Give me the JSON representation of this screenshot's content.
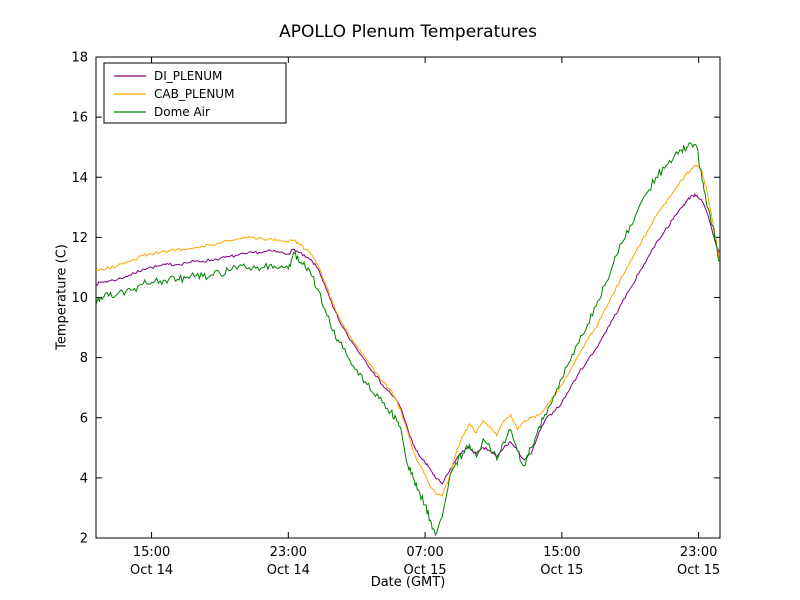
{
  "chart_data": {
    "type": "line",
    "title": "APOLLO Plenum Temperatures",
    "xlabel": "Date (GMT)",
    "ylabel": "Temperature (C)",
    "x_unit": "hours since Oct 14 00:00 GMT",
    "xlim": [
      11.75,
      48.25
    ],
    "ylim": [
      2,
      18
    ],
    "grid": false,
    "legend_position": "upper left",
    "yticks": [
      2,
      4,
      6,
      8,
      10,
      12,
      14,
      16,
      18
    ],
    "xticks": [
      {
        "x": 15,
        "line1": "15:00",
        "line2": "Oct 14"
      },
      {
        "x": 23,
        "line1": "23:00",
        "line2": "Oct 14"
      },
      {
        "x": 31,
        "line1": "07:00",
        "line2": "Oct 15"
      },
      {
        "x": 39,
        "line1": "15:00",
        "line2": "Oct 15"
      },
      {
        "x": 47,
        "line1": "23:00",
        "line2": "Oct 15"
      }
    ],
    "x": [
      11.75,
      12.0,
      12.5,
      13.0,
      13.5,
      14.0,
      14.5,
      15.0,
      15.5,
      16.0,
      16.5,
      17.0,
      17.5,
      18.0,
      18.5,
      19.0,
      19.5,
      20.0,
      20.5,
      21.0,
      21.5,
      22.0,
      22.5,
      23.0,
      23.3,
      23.6,
      24.0,
      24.4,
      24.8,
      25.2,
      25.6,
      26.0,
      26.5,
      27.0,
      27.5,
      28.0,
      28.5,
      29.0,
      29.3,
      29.6,
      30.0,
      30.3,
      30.6,
      31.0,
      31.3,
      31.6,
      32.0,
      32.4,
      32.8,
      33.2,
      33.6,
      34.0,
      34.4,
      34.8,
      35.2,
      35.6,
      36.0,
      36.4,
      36.8,
      37.2,
      37.6,
      38.0,
      38.5,
      39.0,
      39.5,
      40.0,
      40.5,
      41.0,
      41.5,
      42.0,
      42.5,
      43.0,
      43.5,
      44.0,
      44.5,
      45.0,
      45.5,
      46.0,
      46.3,
      46.6,
      46.9,
      47.2,
      47.5,
      47.8,
      48.0,
      48.2
    ],
    "series": [
      {
        "name": "DI_PLENUM",
        "color": "#800080",
        "noise": 0.05,
        "values": [
          10.45,
          10.5,
          10.55,
          10.6,
          10.7,
          10.8,
          10.95,
          11.0,
          11.05,
          11.1,
          11.1,
          11.15,
          11.2,
          11.2,
          11.25,
          11.3,
          11.35,
          11.4,
          11.45,
          11.5,
          11.5,
          11.55,
          11.5,
          11.45,
          11.6,
          11.5,
          11.35,
          11.2,
          10.9,
          10.3,
          9.7,
          9.2,
          8.7,
          8.3,
          7.9,
          7.5,
          7.1,
          6.8,
          6.6,
          6.3,
          5.6,
          5.1,
          4.8,
          4.5,
          4.3,
          4.0,
          3.8,
          4.2,
          4.6,
          4.9,
          5.0,
          4.8,
          5.0,
          4.9,
          4.7,
          5.0,
          5.2,
          4.9,
          4.6,
          4.8,
          5.4,
          5.9,
          6.2,
          6.5,
          7.0,
          7.5,
          7.9,
          8.3,
          8.8,
          9.3,
          9.8,
          10.3,
          10.8,
          11.3,
          11.8,
          12.2,
          12.6,
          13.0,
          13.2,
          13.4,
          13.4,
          13.2,
          12.8,
          12.2,
          11.8,
          11.5
        ]
      },
      {
        "name": "CAB_PLENUM",
        "color": "#ffa500",
        "noise": 0.05,
        "values": [
          10.9,
          10.95,
          11.0,
          11.05,
          11.15,
          11.25,
          11.4,
          11.45,
          11.5,
          11.55,
          11.6,
          11.6,
          11.65,
          11.7,
          11.75,
          11.8,
          11.9,
          11.95,
          12.0,
          12.0,
          11.95,
          11.95,
          11.9,
          11.85,
          11.9,
          11.8,
          11.6,
          11.4,
          11.0,
          10.4,
          9.8,
          9.3,
          8.8,
          8.4,
          8.0,
          7.6,
          7.2,
          6.9,
          6.6,
          6.2,
          5.5,
          4.9,
          4.5,
          4.1,
          3.7,
          3.5,
          3.4,
          4.0,
          4.8,
          5.4,
          5.8,
          5.5,
          5.9,
          5.7,
          5.4,
          5.9,
          6.1,
          5.6,
          5.9,
          6.0,
          6.1,
          6.3,
          6.7,
          7.1,
          7.6,
          8.1,
          8.6,
          9.0,
          9.6,
          10.1,
          10.7,
          11.2,
          11.7,
          12.2,
          12.7,
          13.1,
          13.5,
          13.9,
          14.1,
          14.3,
          14.4,
          14.2,
          13.5,
          12.6,
          12.0,
          11.3
        ]
      },
      {
        "name": "Dome Air",
        "color": "#008000",
        "noise": 0.13,
        "values": [
          9.95,
          10.0,
          10.05,
          10.1,
          10.2,
          10.3,
          10.45,
          10.5,
          10.55,
          10.6,
          10.6,
          10.65,
          10.7,
          10.7,
          10.75,
          10.8,
          10.9,
          10.95,
          11.0,
          11.05,
          11.0,
          11.1,
          11.0,
          10.95,
          11.5,
          11.2,
          11.0,
          10.7,
          10.2,
          9.5,
          8.9,
          8.5,
          8.0,
          7.6,
          7.2,
          6.8,
          6.5,
          6.2,
          6.0,
          5.6,
          4.4,
          4.0,
          3.6,
          3.1,
          2.6,
          2.1,
          2.7,
          3.9,
          4.5,
          4.8,
          5.1,
          4.7,
          5.3,
          5.0,
          4.6,
          5.2,
          5.6,
          4.9,
          4.4,
          5.0,
          5.6,
          6.1,
          6.7,
          7.3,
          7.9,
          8.5,
          9.1,
          9.7,
          10.4,
          11.1,
          11.8,
          12.4,
          13.0,
          13.5,
          14.0,
          14.3,
          14.6,
          14.9,
          15.0,
          15.1,
          15.0,
          13.9,
          13.0,
          12.4,
          11.9,
          11.2
        ]
      }
    ]
  }
}
